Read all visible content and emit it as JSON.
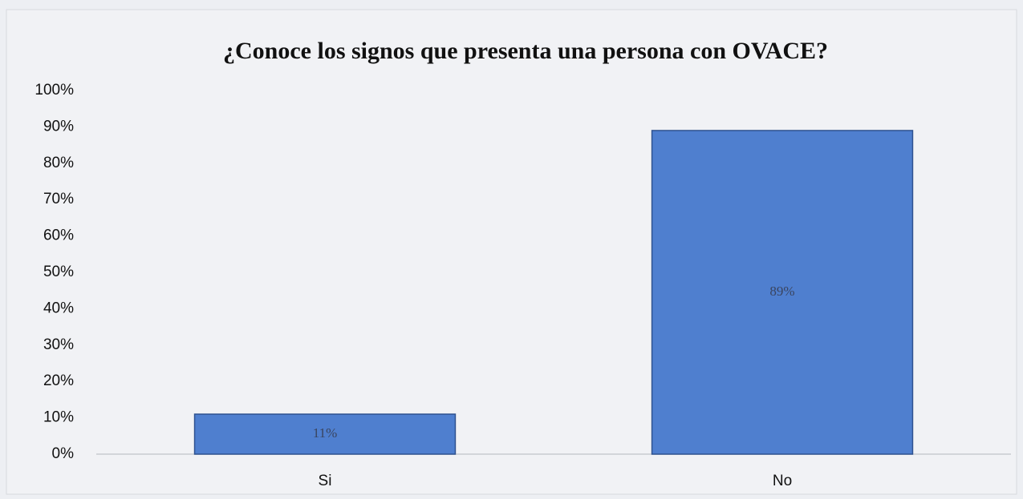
{
  "chart_data": {
    "type": "bar",
    "title": "¿Conoce los signos que presenta una persona con OVACE?",
    "categories": [
      "Si",
      "No"
    ],
    "values": [
      11,
      89
    ],
    "value_labels": [
      "11%",
      "89%"
    ],
    "color": "#4f7fcf",
    "ylim": [
      0,
      100
    ],
    "yticks": [
      {
        "value": 0,
        "label": "0%"
      },
      {
        "value": 10,
        "label": "10%"
      },
      {
        "value": 20,
        "label": "20%"
      },
      {
        "value": 30,
        "label": "30%"
      },
      {
        "value": 40,
        "label": "40%"
      },
      {
        "value": 50,
        "label": "50%"
      },
      {
        "value": 60,
        "label": "60%"
      },
      {
        "value": 70,
        "label": "70%"
      },
      {
        "value": 80,
        "label": "80%"
      },
      {
        "value": 90,
        "label": "90%"
      },
      {
        "value": 100,
        "label": "100%"
      }
    ],
    "grid": false
  }
}
